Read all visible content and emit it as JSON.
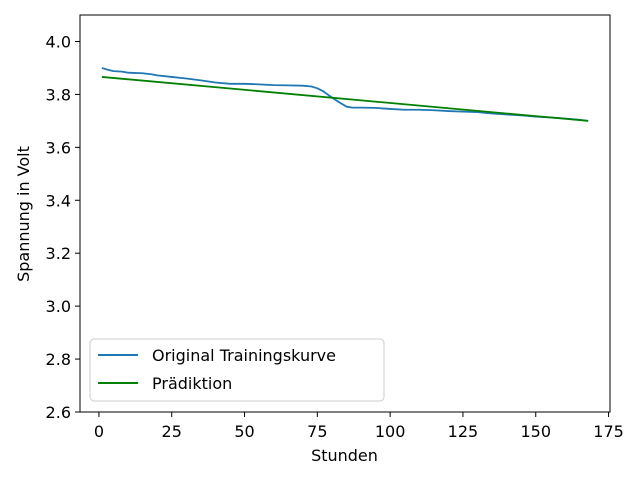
{
  "chart_data": {
    "type": "line",
    "title": "",
    "xlabel": "Stunden",
    "ylabel": "Spannung in Volt",
    "xlim": [
      -6.5,
      175.5
    ],
    "ylim": [
      2.6,
      4.1
    ],
    "xticks": [
      0,
      25,
      50,
      75,
      100,
      125,
      150,
      175
    ],
    "yticks": [
      2.6,
      2.8,
      3.0,
      3.2,
      3.4,
      3.6,
      3.8,
      4.0
    ],
    "xtick_labels": [
      "0",
      "25",
      "50",
      "75",
      "100",
      "125",
      "150",
      "175"
    ],
    "ytick_labels": [
      "2.6",
      "2.8",
      "3.0",
      "3.2",
      "3.4",
      "3.6",
      "3.8",
      "4.0"
    ],
    "grid": false,
    "legend_position": "lower-left",
    "series": [
      {
        "name": "Original Trainingskurve",
        "color": "#1f77b4",
        "x": [
          1,
          3,
          5,
          8,
          10,
          12,
          15,
          18,
          20,
          25,
          30,
          35,
          40,
          45,
          50,
          55,
          60,
          65,
          70,
          73,
          75,
          77,
          79,
          81,
          83,
          85,
          87,
          90,
          95,
          100,
          105,
          110,
          115,
          120,
          125,
          130,
          135,
          140,
          145,
          150,
          155,
          160,
          165,
          168
        ],
        "y": [
          3.9,
          3.893,
          3.888,
          3.886,
          3.882,
          3.881,
          3.88,
          3.876,
          3.872,
          3.866,
          3.86,
          3.853,
          3.845,
          3.84,
          3.84,
          3.838,
          3.835,
          3.834,
          3.833,
          3.83,
          3.823,
          3.812,
          3.796,
          3.781,
          3.767,
          3.754,
          3.75,
          3.75,
          3.749,
          3.745,
          3.742,
          3.742,
          3.74,
          3.737,
          3.735,
          3.733,
          3.728,
          3.724,
          3.721,
          3.716,
          3.713,
          3.709,
          3.704,
          3.7
        ]
      },
      {
        "name": "Prädiktion",
        "color": "#008000",
        "x": [
          1,
          168
        ],
        "y": [
          3.866,
          3.7
        ]
      }
    ]
  }
}
